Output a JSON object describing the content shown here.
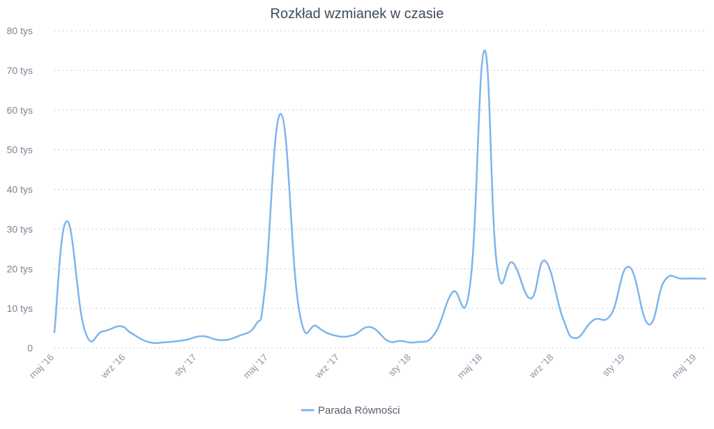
{
  "chart_data": {
    "type": "line",
    "title": "Rozkład wzmianek w czasie",
    "xlabel": "",
    "ylabel": "",
    "ylim": [
      0,
      80000
    ],
    "y_tick_values": [
      0,
      10000,
      20000,
      30000,
      40000,
      50000,
      60000,
      70000,
      80000
    ],
    "y_tick_labels": [
      "0",
      "10 tys",
      "20 tys",
      "30 tys",
      "40 tys",
      "50 tys",
      "60 tys",
      "70 tys",
      "80 tys"
    ],
    "x_tick_labels": [
      "maj '16",
      "wrz '16",
      "sty '17",
      "maj '17",
      "wrz '17",
      "sty '18",
      "maj '18",
      "wrz '18",
      "sty '19",
      "maj '19"
    ],
    "x_tick_positions": [
      0,
      4,
      8,
      12,
      16,
      20,
      24,
      28,
      32,
      36
    ],
    "x_range": [
      0,
      36.5
    ],
    "grid": true,
    "legend": "bottom",
    "color": "#7cb5ec",
    "series": [
      {
        "name": "Parada Równości",
        "x": [
          0,
          0.7,
          1.7,
          2.7,
          3.7,
          4.3,
          5.3,
          6.3,
          7.3,
          8.3,
          9.3,
          10.3,
          11.3,
          11.8,
          12.7,
          13.7,
          14.7,
          15.7,
          16.7,
          17.7,
          18.7,
          19.4,
          20.3,
          21.3,
          22.3,
          23.3,
          24.1,
          24.8,
          25.7,
          26.7,
          27.5,
          28.5,
          29.2,
          30.2,
          31.2,
          32.2,
          33.3,
          34.2,
          35.2,
          36.5
        ],
        "values": [
          4000,
          32000,
          4500,
          4200,
          5500,
          3800,
          1500,
          1500,
          2000,
          3000,
          2000,
          3000,
          6000,
          15000,
          59000,
          10000,
          5500,
          3200,
          3200,
          5300,
          1800,
          1800,
          1500,
          3500,
          14000,
          16000,
          75000,
          21000,
          21500,
          12500,
          22000,
          7500,
          2500,
          7000,
          8500,
          20500,
          6000,
          17000,
          17500,
          17500
        ]
      }
    ]
  }
}
